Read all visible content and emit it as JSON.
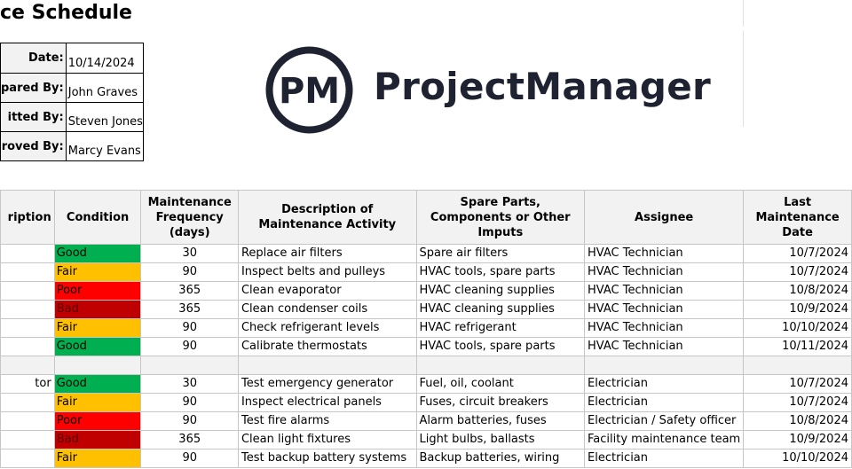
{
  "page": {
    "title": "ce Schedule"
  },
  "info": [
    {
      "label": "Date:",
      "value": "10/14/2024"
    },
    {
      "label": "pared By:",
      "value": "John Graves"
    },
    {
      "label": "itted By:",
      "value": "Steven Jones"
    },
    {
      "label": "roved By:",
      "value": "Marcy Evans"
    }
  ],
  "logo": {
    "mark_text": "PM",
    "brand": "ProjectManager"
  },
  "colors": {
    "good": "#00b050",
    "fair": "#ffc000",
    "poor": "#ff0000",
    "bad": "#c00000",
    "header_bg": "#f2f2f2",
    "logo_dark": "#1f2230"
  },
  "table": {
    "headers": [
      "ription",
      "Condition",
      "Maintenance Frequency (days)",
      "Description of Maintenance Activity",
      "Spare Parts, Components or Other Imputs",
      "Assignee",
      "Last Maintenance Date"
    ],
    "rows": [
      {
        "first": "",
        "condition": "Good",
        "cond_color": "#00b050",
        "frequency": "30",
        "activity": "Replace air filters",
        "parts": "Spare air filters",
        "assignee": "HVAC Technician",
        "date": "10/7/2024"
      },
      {
        "first": "",
        "condition": "Fair",
        "cond_color": "#ffc000",
        "frequency": "90",
        "activity": "Inspect belts and pulleys",
        "parts": "HVAC tools, spare parts",
        "assignee": "HVAC Technician",
        "date": "10/7/2024"
      },
      {
        "first": "",
        "condition": "Poor",
        "cond_color": "#ff0000",
        "frequency": "365",
        "activity": "Clean evaporator",
        "parts": "HVAC cleaning supplies",
        "assignee": "HVAC Technician",
        "date": "10/8/2024"
      },
      {
        "first": "",
        "condition": "Bad",
        "cond_color": "#c00000",
        "frequency": "365",
        "activity": "Clean condenser coils",
        "parts": "HVAC cleaning supplies",
        "assignee": "HVAC Technician",
        "date": "10/9/2024"
      },
      {
        "first": "",
        "condition": "Fair",
        "cond_color": "#ffc000",
        "frequency": "90",
        "activity": "Check refrigerant levels",
        "parts": "HVAC refrigerant",
        "assignee": "HVAC Technician",
        "date": "10/10/2024"
      },
      {
        "first": "",
        "condition": "Good",
        "cond_color": "#00b050",
        "frequency": "90",
        "activity": "Calibrate thermostats",
        "parts": "HVAC tools, spare parts",
        "assignee": "HVAC Technician",
        "date": "10/11/2024"
      },
      {
        "blank": true
      },
      {
        "first": "tor",
        "condition": "Good",
        "cond_color": "#00b050",
        "frequency": "30",
        "activity": "Test emergency generator",
        "parts": "Fuel, oil, coolant",
        "assignee": "Electrician",
        "date": "10/7/2024"
      },
      {
        "first": "",
        "condition": "Fair",
        "cond_color": "#ffc000",
        "frequency": "90",
        "activity": "Inspect electrical panels",
        "parts": "Fuses, circuit breakers",
        "assignee": "Electrician",
        "date": "10/7/2024"
      },
      {
        "first": "",
        "condition": "Poor",
        "cond_color": "#ff0000",
        "frequency": "90",
        "activity": "Test fire alarms",
        "parts": "Alarm batteries, fuses",
        "assignee": "Electrician / Safety officer",
        "date": "10/8/2024"
      },
      {
        "first": "",
        "condition": "Bad",
        "cond_color": "#c00000",
        "frequency": "365",
        "activity": "Clean light fixtures",
        "parts": "Light bulbs, ballasts",
        "assignee": "Facility maintenance team",
        "date": "10/9/2024"
      },
      {
        "first": "",
        "condition": "Fair",
        "cond_color": "#ffc000",
        "frequency": "90",
        "activity": "Test backup battery systems",
        "parts": "Backup batteries, wiring",
        "assignee": "Electrician",
        "date": "10/10/2024"
      }
    ]
  }
}
